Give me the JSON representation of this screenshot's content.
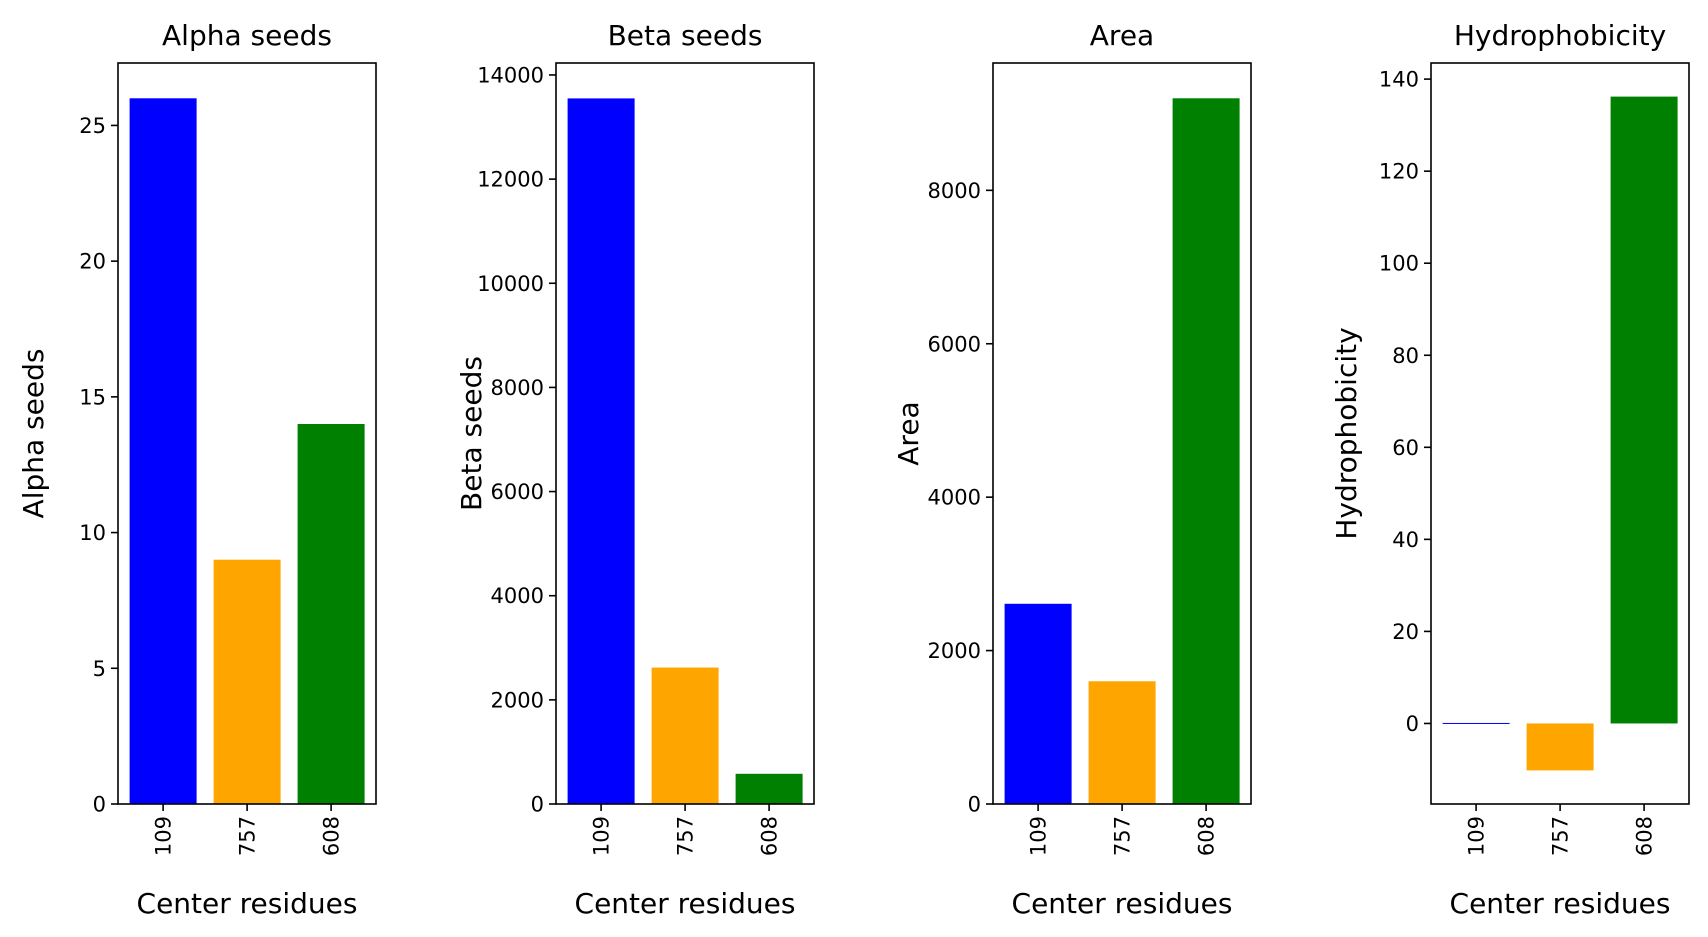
{
  "chart_data": [
    {
      "type": "bar",
      "title": "Alpha seeds",
      "xlabel": "Center residues",
      "ylabel": "Alpha seeds",
      "categories": [
        "109",
        "757",
        "608"
      ],
      "values": [
        26,
        9,
        14
      ],
      "colors": [
        "#0000ff",
        "#ffa500",
        "#008000"
      ],
      "ylim": [
        0,
        27.3
      ],
      "yticks": [
        0,
        5,
        10,
        15,
        20,
        25
      ],
      "grid": false
    },
    {
      "type": "bar",
      "title": "Beta seeds",
      "xlabel": "Center residues",
      "ylabel": "Beta seeds",
      "categories": [
        "109",
        "757",
        "608"
      ],
      "values": [
        13550,
        2620,
        580
      ],
      "colors": [
        "#0000ff",
        "#ffa500",
        "#008000"
      ],
      "ylim": [
        0,
        14230
      ],
      "yticks": [
        0,
        2000,
        4000,
        6000,
        8000,
        10000,
        12000,
        14000
      ],
      "grid": false
    },
    {
      "type": "bar",
      "title": "Area",
      "xlabel": "Center residues",
      "ylabel": "Area",
      "categories": [
        "109",
        "757",
        "608"
      ],
      "values": [
        2610,
        1600,
        9200
      ],
      "colors": [
        "#0000ff",
        "#ffa500",
        "#008000"
      ],
      "ylim": [
        0,
        9660
      ],
      "yticks": [
        0,
        2000,
        4000,
        6000,
        8000
      ],
      "grid": false
    },
    {
      "type": "bar",
      "title": "Hydrophobicity",
      "xlabel": "Center residues",
      "ylabel": "Hydrophobicity",
      "categories": [
        "109",
        "757",
        "608"
      ],
      "values": [
        0.2,
        -10.2,
        136.2
      ],
      "colors": [
        "#0000ff",
        "#ffa500",
        "#008000"
      ],
      "ylim": [
        -17.5,
        143.5
      ],
      "yticks": [
        0,
        20,
        40,
        60,
        80,
        100,
        120,
        140
      ],
      "grid": false
    }
  ]
}
